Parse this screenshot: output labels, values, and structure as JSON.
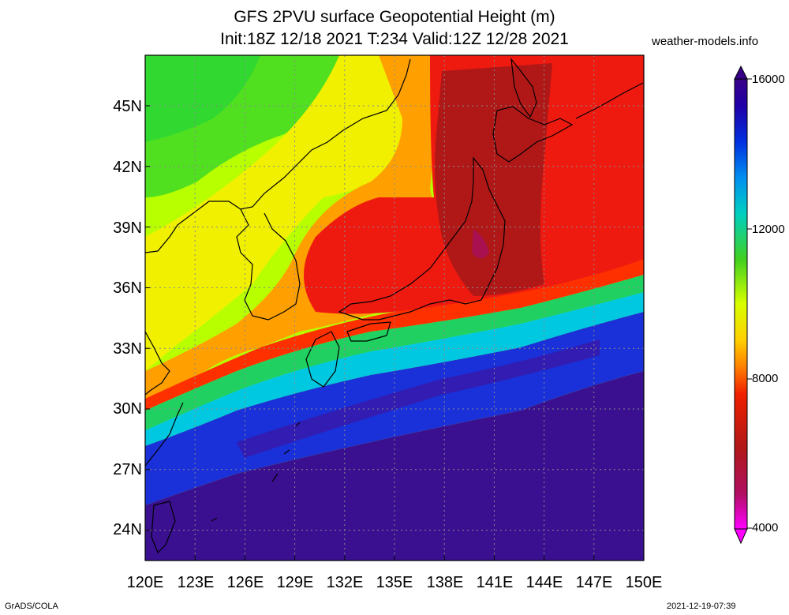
{
  "title_line1": "GFS 2PVU surface Geopotential Height (m)",
  "title_line2": "Init:18Z 12/18 2021 T:234 Valid:12Z 12/28 2021",
  "site": "weather-models.info",
  "footer_left": "GrADS/COLA",
  "footer_right": "2021-12-19-07:39",
  "lat_labels": [
    "45N",
    "42N",
    "39N",
    "36N",
    "33N",
    "30N",
    "27N",
    "24N"
  ],
  "lon_labels": [
    "120E",
    "123E",
    "126E",
    "129E",
    "132E",
    "135E",
    "138E",
    "141E",
    "144E",
    "147E",
    "150E"
  ],
  "colorbar": {
    "labels": [
      "16000",
      "12000",
      "8000",
      "4000"
    ],
    "colors": [
      "#ff00ff",
      "#cc22aa",
      "#a01040",
      "#b01818",
      "#d01010",
      "#f02000",
      "#ff4000",
      "#ff8000",
      "#ffa800",
      "#ffd000",
      "#ffff00",
      "#d8ff00",
      "#a8f000",
      "#70e000",
      "#30d020",
      "#00c060",
      "#00d0a0",
      "#00e0e0",
      "#00b0f0",
      "#0080f0",
      "#0050e8",
      "#0020e0",
      "#1010c0",
      "#2000a0",
      "#380088"
    ],
    "range": [
      4000,
      16000
    ]
  },
  "map_extent": {
    "lon": [
      120,
      150
    ],
    "lat": [
      22.5,
      47.5
    ]
  },
  "colors": {
    "deep_purple": "#3a1090",
    "blue": "#1a30d8",
    "cyan": "#00c8e8",
    "green": "#40e020",
    "yellow": "#e8f000",
    "orange": "#ff9000",
    "red": "#e01010",
    "dark_red": "#b01818"
  }
}
